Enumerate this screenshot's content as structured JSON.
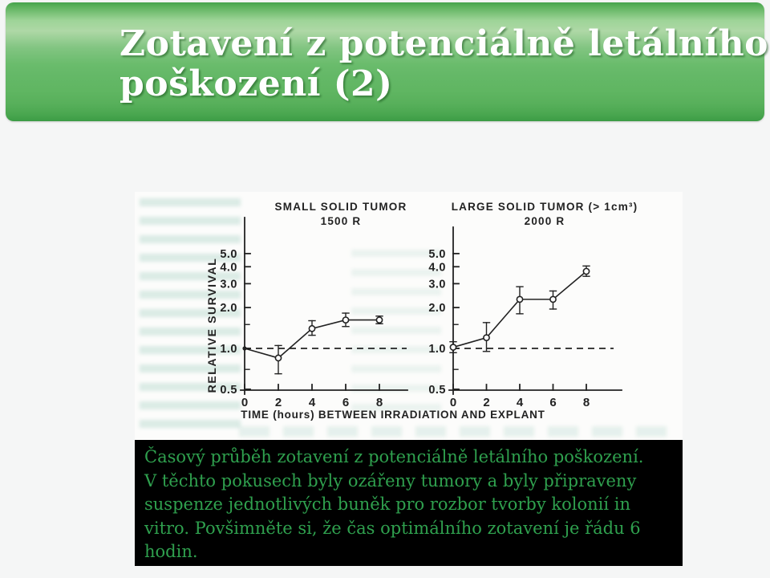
{
  "header": {
    "title_lines": [
      "Zotavení z potenciálně letálního",
      "poškození (2)"
    ]
  },
  "figure": {
    "caption_lines": [
      "Časový průběh zotavení z potenciálně letálního poškození.",
      "V těchto pokusech byly ozářeny tumory a byly připraveny",
      "suspenze jednotlivých buněk pro rozbor tvorby kolonií in",
      "vitro. Povšimněte si, že čas optimálního zotavení je řádu 6",
      "hodin."
    ]
  },
  "colors": {
    "slide_bg": "#f5f6f6",
    "scan_bg": "#fcfcfb",
    "caption_bg": "#000000",
    "caption_text": "#2fa04e",
    "ink": "#222222",
    "hg_dark": "#3c9c45",
    "hg_mid": "#64b867",
    "hg_light": "#aed8a6"
  },
  "chart_data": [
    {
      "type": "line",
      "title": "SMALL SOLID TUMOR",
      "subtitle": "1500 R",
      "ylabel": "RELATIVE SURVIVAL",
      "xlabel": "TIME (hours) BETWEEN IRRADIATION AND EXPLANT",
      "yscale": "log",
      "ylim": [
        0.5,
        9
      ],
      "xticks": [
        0,
        2,
        4,
        6,
        8
      ],
      "yticks": [
        0.5,
        1.0,
        2.0,
        3.0,
        4.0,
        5.0
      ],
      "minor_yticks": [
        0.7,
        1.5
      ],
      "baseline": 1.0,
      "grid": false,
      "x": [
        0,
        2,
        4,
        6,
        8
      ],
      "y": [
        1.0,
        0.85,
        1.4,
        1.62,
        1.62
      ],
      "err_low": [
        1.0,
        0.65,
        1.25,
        1.45,
        1.52
      ],
      "err_high": [
        1.0,
        1.05,
        1.6,
        1.82,
        1.73
      ],
      "first_point_filled": true
    },
    {
      "type": "line",
      "title": "LARGE SOLID TUMOR (> 1cm³)",
      "subtitle": "2000 R",
      "yscale": "log",
      "ylim": [
        0.5,
        9
      ],
      "xticks": [
        0,
        2,
        4,
        6,
        8
      ],
      "yticks": [
        0.5,
        1.0,
        2.0,
        3.0,
        4.0,
        5.0
      ],
      "minor_yticks": [
        0.7,
        1.5
      ],
      "baseline": 1.0,
      "grid": false,
      "x": [
        0,
        2,
        4,
        6,
        8
      ],
      "y": [
        1.02,
        1.2,
        2.3,
        2.3,
        3.7
      ],
      "err_low": [
        0.93,
        0.95,
        1.8,
        1.95,
        3.4
      ],
      "err_high": [
        1.12,
        1.55,
        2.85,
        2.65,
        4.05
      ],
      "first_point_filled": false
    }
  ]
}
